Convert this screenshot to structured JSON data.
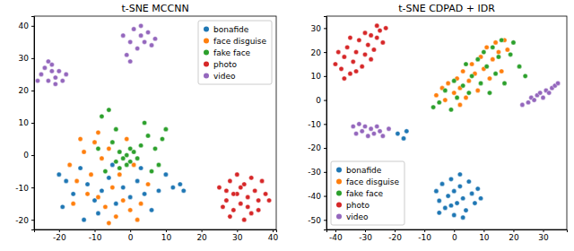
{
  "chart_data": [
    {
      "type": "scatter",
      "title": "t-SNE MCCNN",
      "legend": "upper right",
      "xlim": [
        -27,
        41
      ],
      "ylim": [
        -23,
        43
      ],
      "xticks": [
        -20,
        -10,
        0,
        10,
        20,
        30,
        40
      ],
      "yticks": [
        -20,
        -10,
        0,
        10,
        20,
        30,
        40
      ],
      "series": [
        {
          "name": "bonafide",
          "color": "#1f77b4",
          "x": [
            -20,
            -18,
            -16,
            -14,
            -12,
            -10,
            -8,
            -6,
            -4,
            -2,
            0,
            2,
            4,
            6,
            8,
            10,
            12,
            14,
            15,
            -19,
            -9,
            3,
            -5,
            -13
          ],
          "values": [
            -6,
            -8,
            -12,
            -4,
            -9,
            -14,
            -11,
            -7,
            -15,
            -10,
            -13,
            -8,
            -12,
            -17,
            -11,
            -6,
            -10,
            -9,
            -11,
            -16,
            -18,
            -4,
            -3,
            -20
          ]
        },
        {
          "name": "face disguise",
          "color": "#ff7f0e",
          "x": [
            -17,
            -15,
            -13,
            -11,
            -10,
            -9,
            -7,
            -6,
            -5,
            -4,
            -3,
            -2,
            0,
            1,
            3,
            5,
            -12,
            -8,
            -14,
            -6,
            -1,
            2,
            -16,
            -9
          ],
          "values": [
            -3,
            -8,
            1,
            -6,
            4,
            -13,
            -16,
            2,
            -10,
            -19,
            -6,
            -14,
            -17,
            -3,
            -15,
            -9,
            -12,
            -1,
            5,
            -21,
            5,
            -20,
            -15,
            7
          ]
        },
        {
          "name": "fake face",
          "color": "#2ca02c",
          "x": [
            -2,
            -1,
            0,
            -3,
            1,
            -4,
            2,
            -1,
            0,
            -3,
            3,
            -5,
            5,
            7,
            9,
            -8,
            -6,
            -9,
            4,
            8,
            10,
            -4,
            6,
            -7
          ],
          "values": [
            -1,
            0,
            -2,
            1,
            1,
            -2,
            -1,
            -3,
            2,
            -4,
            3,
            4,
            6,
            2,
            5,
            12,
            14,
            2,
            10,
            -3,
            8,
            8,
            -5,
            -5
          ]
        },
        {
          "name": "photo",
          "color": "#d62728",
          "x": [
            25,
            27,
            28,
            29,
            30,
            31,
            32,
            33,
            34,
            35,
            36,
            37,
            38,
            26,
            28,
            30,
            32,
            34,
            36,
            31,
            29,
            33,
            27,
            39
          ],
          "values": [
            -10,
            -14,
            -8,
            -17,
            -12,
            -15,
            -9,
            -13,
            -18,
            -11,
            -14,
            -8,
            -12,
            -16,
            -19,
            -6,
            -20,
            -7,
            -17,
            -10,
            -12,
            -16,
            -11,
            -14
          ]
        },
        {
          "name": "video",
          "color": "#9467bd",
          "x": [
            -25,
            -24,
            -23,
            -22,
            -21,
            -20,
            -19,
            -23,
            -26,
            -21,
            -18,
            -22,
            -2,
            0,
            1,
            2,
            3,
            4,
            5,
            6,
            -1,
            0,
            3,
            7
          ],
          "values": [
            25,
            27,
            23,
            28,
            24,
            26,
            23,
            29,
            23,
            22,
            25,
            26,
            37,
            35,
            39,
            33,
            37,
            35,
            38,
            34,
            31,
            29,
            40,
            36
          ]
        }
      ]
    },
    {
      "type": "scatter",
      "title": "t-SNE CDPAD + IDR",
      "legend": "lower left",
      "xlim": [
        -43,
        38
      ],
      "ylim": [
        -54,
        35
      ],
      "xticks": [
        -40,
        -30,
        -20,
        -10,
        0,
        10,
        20,
        30
      ],
      "yticks": [
        -50,
        -40,
        -30,
        -20,
        -10,
        0,
        10,
        20,
        30
      ],
      "series": [
        {
          "name": "bonafide",
          "color": "#1f77b4",
          "x": [
            -6,
            -5,
            -4,
            -3,
            -2,
            -1,
            0,
            0,
            1,
            2,
            3,
            4,
            5,
            6,
            7,
            8,
            -1,
            2,
            3,
            9,
            -19,
            -17,
            -16,
            -5
          ],
          "values": [
            -38,
            -42,
            -35,
            -45,
            -40,
            -33,
            -48,
            -38,
            -43,
            -36,
            -41,
            -46,
            -34,
            -39,
            -43,
            -37,
            -44,
            -31,
            -49,
            -41,
            -14,
            -16,
            -13,
            -47
          ]
        },
        {
          "name": "face disguise",
          "color": "#ff7f0e",
          "x": [
            -6,
            -4,
            -3,
            -2,
            0,
            1,
            2,
            3,
            4,
            5,
            6,
            7,
            8,
            9,
            10,
            11,
            12,
            13,
            14,
            15,
            16,
            17,
            18,
            2
          ],
          "values": [
            2,
            5,
            0,
            7,
            3,
            9,
            5,
            12,
            1,
            8,
            15,
            11,
            4,
            18,
            13,
            22,
            9,
            17,
            24,
            20,
            12,
            25,
            21,
            -2
          ]
        },
        {
          "name": "fake face",
          "color": "#2ca02c",
          "x": [
            -7,
            -5,
            -3,
            -1,
            0,
            1,
            3,
            4,
            5,
            6,
            8,
            9,
            10,
            11,
            12,
            13,
            14,
            15,
            16,
            17,
            19,
            20,
            22,
            24
          ],
          "values": [
            -3,
            -1,
            4,
            -4,
            8,
            1,
            6,
            15,
            3,
            10,
            17,
            7,
            20,
            14,
            3,
            22,
            11,
            18,
            25,
            7,
            19,
            24,
            14,
            10
          ]
        },
        {
          "name": "photo",
          "color": "#d62728",
          "x": [
            -40,
            -39,
            -38,
            -37,
            -36,
            -35,
            -34,
            -33,
            -32,
            -31,
            -30,
            -29,
            -28,
            -27,
            -26,
            -25,
            -24,
            -23,
            -37,
            -33,
            -30,
            -35,
            -28,
            -26
          ],
          "values": [
            15,
            20,
            13,
            18,
            22,
            11,
            16,
            20,
            25,
            14,
            19,
            23,
            27,
            21,
            26,
            29,
            24,
            30,
            9,
            12,
            28,
            26,
            17,
            31
          ]
        },
        {
          "name": "video",
          "color": "#9467bd",
          "x": [
            -34,
            -33,
            -32,
            -31,
            -30,
            -29,
            -28,
            -27,
            -26,
            -25,
            -24,
            -22,
            23,
            25,
            26,
            27,
            28,
            29,
            30,
            31,
            32,
            33,
            34,
            35
          ],
          "values": [
            -11,
            -14,
            -10,
            -13,
            -11,
            -15,
            -12,
            -14,
            -11,
            -13,
            -15,
            -12,
            -2,
            -1,
            1,
            0,
            2,
            3,
            1,
            4,
            3,
            5,
            6,
            7
          ]
        }
      ]
    }
  ]
}
